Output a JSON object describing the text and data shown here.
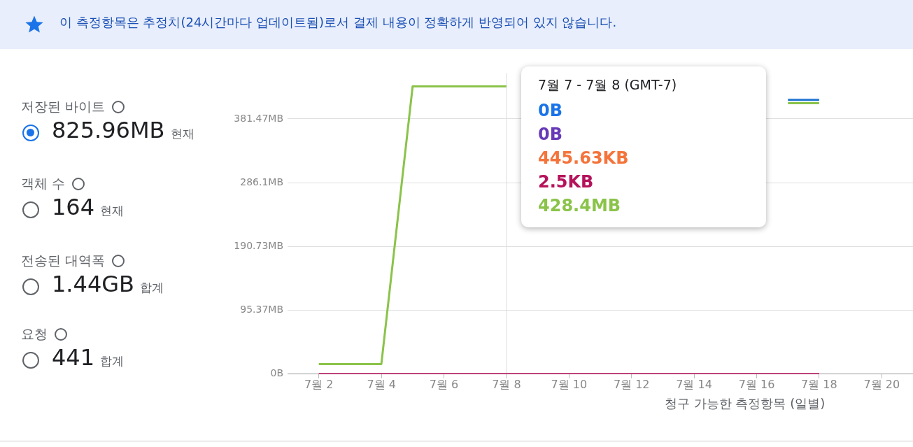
{
  "chart_data": {
    "type": "line",
    "xlabel": "청구 가능한 측정항목 (일별)",
    "categories": [
      null,
      "7월 2",
      null,
      "7월 4",
      null,
      "7월 6",
      null,
      "7월 8",
      null,
      "7월 10",
      null,
      "7월 12",
      null,
      "7월 14",
      null,
      "7월 16",
      null,
      "7월 18",
      null,
      "7월 20",
      null
    ],
    "series": [
      {
        "color": "#8bc34a",
        "values": [
          null,
          15,
          15,
          15,
          430,
          430,
          430,
          430,
          null,
          null,
          null,
          null,
          null,
          null,
          null,
          null,
          405,
          405,
          null,
          null,
          null
        ]
      },
      {
        "color": "#1e74d0",
        "values": [
          null,
          null,
          null,
          null,
          null,
          null,
          null,
          null,
          null,
          null,
          null,
          null,
          null,
          null,
          null,
          null,
          410,
          410,
          null,
          null,
          null
        ]
      },
      {
        "color": "#b5135c",
        "values": [
          null,
          0,
          0,
          0,
          0,
          0,
          0,
          0,
          0,
          0,
          0,
          0,
          0,
          0,
          0,
          0,
          0,
          0,
          null,
          null,
          null
        ]
      }
    ],
    "ylim": [
      0,
      450
    ],
    "yticks": [
      {
        "value": 0,
        "label": "0B"
      },
      {
        "value": 95.37,
        "label": "95.37MB"
      },
      {
        "value": 190.73,
        "label": "190.73MB"
      },
      {
        "value": 286.1,
        "label": "286.1MB"
      },
      {
        "value": 381.47,
        "label": "381.47MB"
      }
    ],
    "grid": "y",
    "ref_lines": [
      {
        "axis": "x",
        "value": "7월 8",
        "color": "#dadce0"
      }
    ],
    "annotations": [
      "이 측정항목은 추정치(24시간마다 업데이트됨)로서 결제 내용이 정확하게 반영되어 있지 않습니다.",
      "저장된 바이트",
      "825.96MB",
      "현재",
      "객체 수",
      "164",
      "현재",
      "전송된 대역폭",
      "1.44GB",
      "합계",
      "요청",
      "441",
      "합계",
      "7월 7 - 7월 8 (GMT-7)",
      "0B",
      "0B",
      "445.63KB",
      "2.5KB",
      "428.4MB"
    ]
  }
}
